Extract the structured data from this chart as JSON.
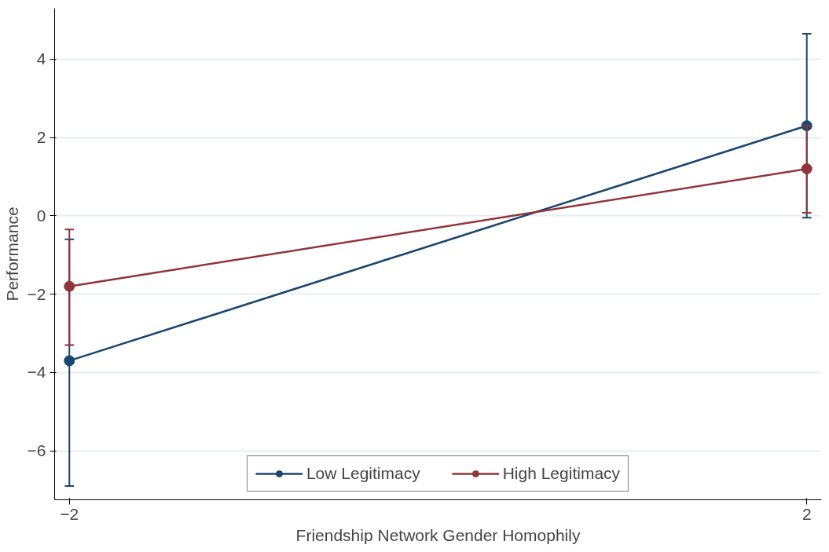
{
  "chart_data": {
    "type": "line",
    "xlabel": "Friendship Network Gender Homophily",
    "ylabel": "Performance",
    "x": [
      -2,
      2
    ],
    "series": [
      {
        "name": "Low Legitimacy",
        "color": "#1a476f",
        "values": [
          -3.7,
          2.3
        ],
        "errors": [
          [
            -6.9,
            -0.6
          ],
          [
            -0.05,
            4.65
          ]
        ]
      },
      {
        "name": "High Legitimacy",
        "color": "#90353b",
        "values": [
          -1.8,
          1.2
        ],
        "errors": [
          [
            -3.3,
            -0.35
          ],
          [
            0.08,
            2.3
          ]
        ]
      }
    ],
    "xlim": [
      -2.08,
      2.08
    ],
    "xticks": [
      -2,
      2
    ],
    "ylim": [
      -7.25,
      5.3
    ],
    "yticks": [
      -6,
      -4,
      -2,
      0,
      2,
      4
    ],
    "grid": "y",
    "legend": "bottom",
    "marker": "circle",
    "line_style": "solid"
  }
}
